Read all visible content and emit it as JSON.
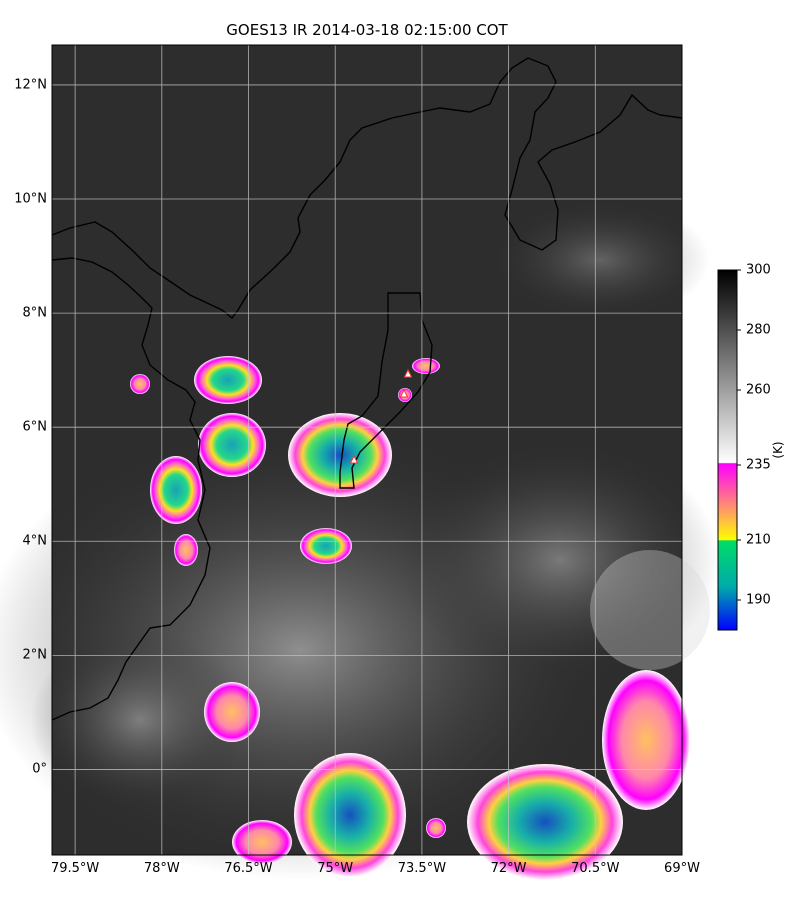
{
  "title": "GOES13 IR  2014-03-18 02:15:00 COT",
  "map": {
    "lon_range": [
      -79.9,
      -69.0
    ],
    "lat_range": [
      -1.5,
      12.7
    ],
    "x_ticks": [
      "79.5°W",
      "78°W",
      "76.5°W",
      "75°W",
      "73.5°W",
      "72°W",
      "70.5°W",
      "69°W"
    ],
    "y_ticks": [
      "12°N",
      "10°N",
      "8°N",
      "6°N",
      "4°N",
      "2°N",
      "0°"
    ],
    "gridlines": true
  },
  "colorbar": {
    "label": "(K)",
    "ticks": [
      "300",
      "280",
      "260",
      "235",
      "210",
      "190"
    ],
    "range": [
      180,
      300
    ],
    "colors": {
      "deep": "#0000ff",
      "mid": "#00cc99",
      "warm": "#ffff00",
      "hot": "#ff00ff",
      "white": "#ffffff",
      "dark": "#000000"
    }
  },
  "markers": {
    "symbol": "triangle",
    "color": "#ff3333"
  }
}
